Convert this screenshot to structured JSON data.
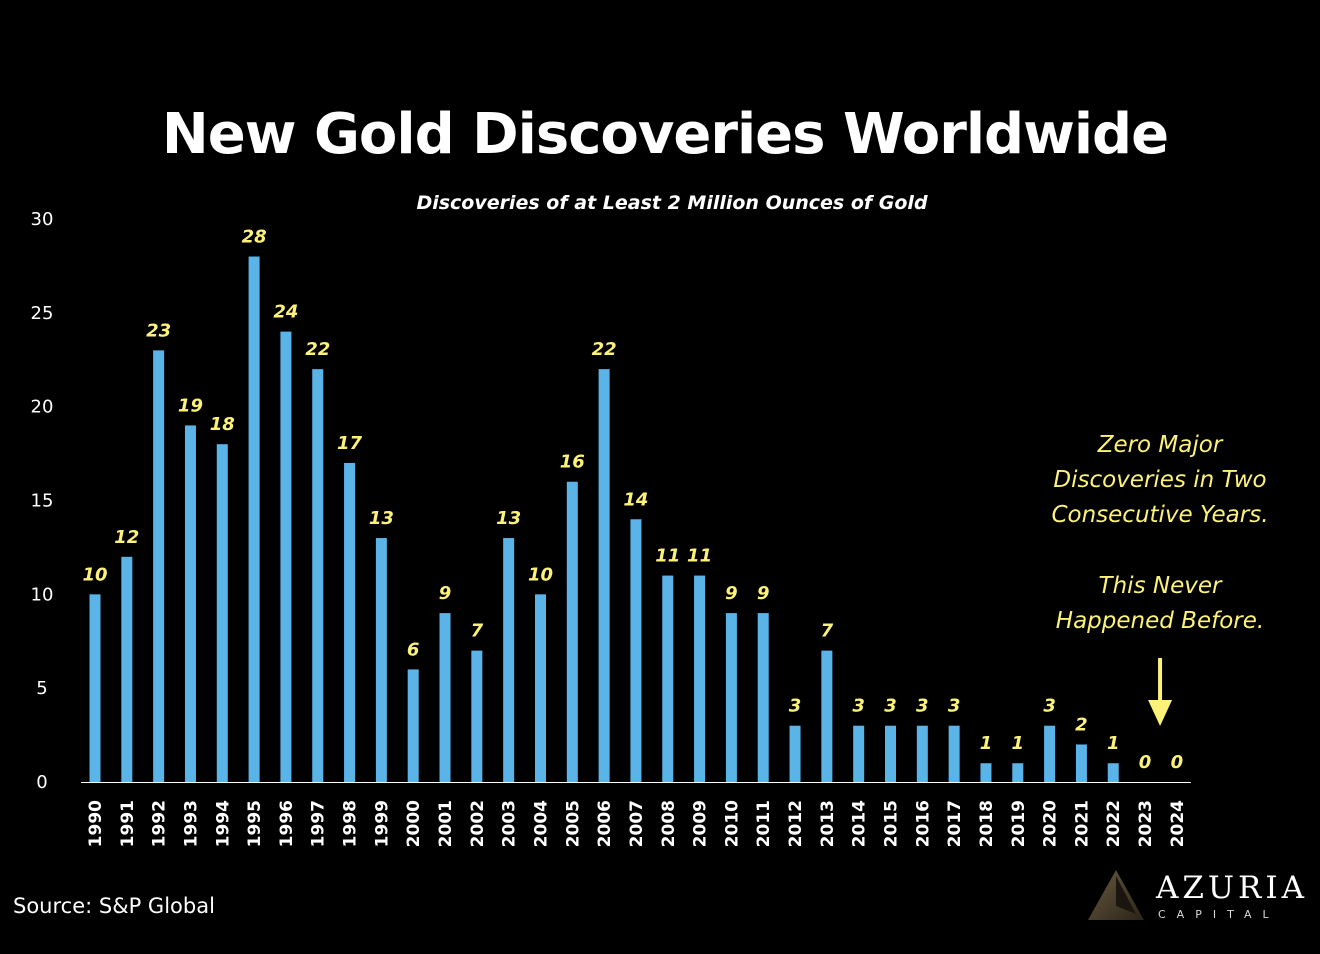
{
  "chart_data": {
    "type": "bar",
    "title": "New Gold Discoveries Worldwide",
    "subtitle": "Discoveries of at Least 2 Million Ounces of Gold",
    "categories": [
      "1990",
      "1991",
      "1992",
      "1993",
      "1994",
      "1995",
      "1996",
      "1997",
      "1998",
      "1999",
      "2000",
      "2001",
      "2002",
      "2003",
      "2004",
      "2005",
      "2006",
      "2007",
      "2008",
      "2009",
      "2010",
      "2011",
      "2012",
      "2013",
      "2014",
      "2015",
      "2016",
      "2017",
      "2018",
      "2019",
      "2020",
      "2021",
      "2022",
      "2023",
      "2024"
    ],
    "values": [
      10,
      12,
      23,
      19,
      18,
      28,
      24,
      22,
      17,
      13,
      6,
      9,
      7,
      13,
      10,
      16,
      22,
      14,
      11,
      11,
      9,
      9,
      3,
      7,
      3,
      3,
      3,
      3,
      1,
      1,
      3,
      2,
      1,
      0,
      0
    ],
    "xlabel": "",
    "ylabel": "",
    "ylim": [
      0,
      30
    ],
    "yticks": [
      0,
      5,
      10,
      15,
      20,
      25,
      30
    ],
    "grid": false,
    "legend": "none",
    "data_labels": true,
    "annotation_lines": [
      "Zero Major",
      "Discoveries in Two",
      "Consecutive Years.",
      "This Never",
      "Happened Before."
    ],
    "annotation_target": "2023"
  },
  "source": "Source: S&P Global",
  "logo": {
    "name": "AZURIA",
    "sub": "CAPITAL"
  },
  "colors": {
    "background": "#000000",
    "bar": "#5bb4e8",
    "data_label": "#fcf27a",
    "annotation": "#fcf27a",
    "axis_text": "#ffffff",
    "title": "#ffffff"
  }
}
